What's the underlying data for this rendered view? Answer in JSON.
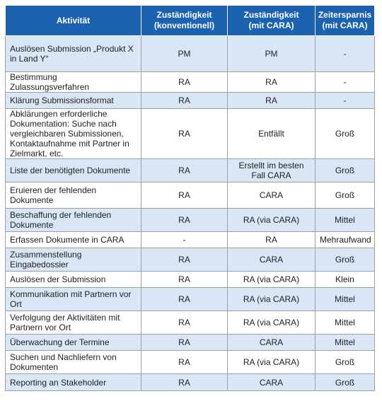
{
  "headers": [
    [
      "Aktivität"
    ],
    [
      "Zuständigkeit",
      "(konventionell)"
    ],
    [
      "Zuständigkeit",
      "(mit CARA)"
    ],
    [
      "Zeitersparnis",
      "(mit CARA)"
    ]
  ],
  "rows": [
    [
      "Auslösen Submission „Produkt X in Land Y“",
      "PM",
      "PM",
      "-"
    ],
    [
      "Bestimmung Zulassungsverfahren",
      "RA",
      "RA",
      "-"
    ],
    [
      "Klärung Submissionsformat",
      "RA",
      "RA",
      "-"
    ],
    [
      "Abklärungen erforderliche Dokumentation: Suche nach vergleichbaren Submissionen, Kontaktaufnahme mit Partner in Zielmarkt, etc.",
      "RA",
      "Entfällt",
      "Groß"
    ],
    [
      "Liste der benötigten Dokumente",
      "RA",
      "Erstellt im besten Fall CARA",
      "Groß"
    ],
    [
      "Eruieren der fehlenden Dokumente",
      "RA",
      "CARA",
      "Groß"
    ],
    [
      "Beschaffung der fehlenden Dokumente",
      "RA",
      "RA (via CARA)",
      "Mittel"
    ],
    [
      "Erfassen Dokumente in CARA",
      "-",
      "RA",
      "Mehraufwand"
    ],
    [
      "Zusammenstellung Eingabedossier",
      "RA",
      "CARA",
      "Groß"
    ],
    [
      "Auslösen der Submission",
      "RA",
      "RA (via CARA)",
      "Klein"
    ],
    [
      "Kommunikation mit Partnern vor Ort",
      "RA",
      "RA (via CARA)",
      "Mittel"
    ],
    [
      "Verfolgung der Aktivitäten mit Partnern vor Ort",
      "RA",
      "RA (via CARA)",
      "Mittel"
    ],
    [
      "Überwachung der Termine",
      "RA",
      "CARA",
      "Mittel"
    ],
    [
      "Suchen und Nachliefern von Dokumenten",
      "RA",
      "RA (via CARA)",
      "Groß"
    ],
    [
      "Reporting an Stakeholder",
      "RA",
      "CARA",
      "Groß"
    ]
  ],
  "colors": {
    "header_bg": "#1b62b0",
    "row_alt": "#d9e6f5",
    "border": "#9aa0a6"
  }
}
